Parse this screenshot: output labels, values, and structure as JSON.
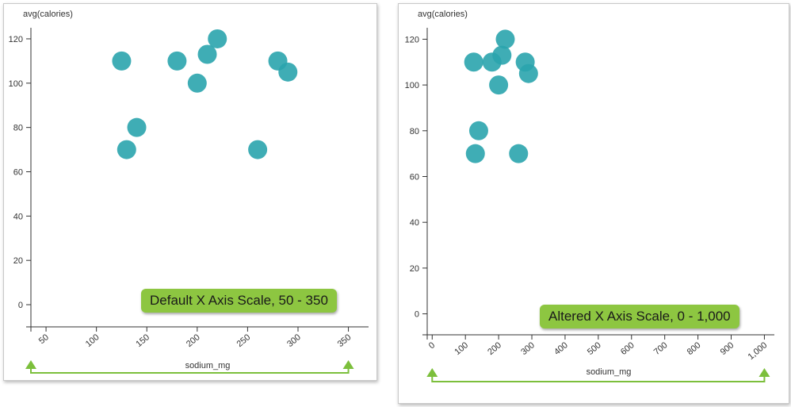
{
  "theme": {
    "dot_color": "#2aa4ad",
    "callout_color": "#8dc641",
    "range_color": "#7cbf3c",
    "axis_color": "#333333"
  },
  "chart_data": [
    {
      "type": "scatter",
      "title": "",
      "ylabel": "avg(calories)",
      "xlabel": "sodium_mg",
      "xlim": [
        35,
        370
      ],
      "ylim": [
        -5,
        125
      ],
      "x_ticks": [
        "50",
        "100",
        "150",
        "200",
        "250",
        "300",
        "350"
      ],
      "y_ticks": [
        "0",
        "20",
        "40",
        "60",
        "80",
        "100",
        "120"
      ],
      "x_tick_values": [
        50,
        100,
        150,
        200,
        250,
        300,
        350
      ],
      "y_tick_values": [
        0,
        20,
        40,
        60,
        80,
        100,
        120
      ],
      "points": [
        {
          "x": 125,
          "y": 110
        },
        {
          "x": 130,
          "y": 70
        },
        {
          "x": 140,
          "y": 80
        },
        {
          "x": 180,
          "y": 110
        },
        {
          "x": 200,
          "y": 100
        },
        {
          "x": 210,
          "y": 113
        },
        {
          "x": 220,
          "y": 120
        },
        {
          "x": 260,
          "y": 70
        },
        {
          "x": 280,
          "y": 110
        },
        {
          "x": 290,
          "y": 105
        }
      ],
      "grid": false,
      "callout": "Default X Axis Scale, 50 - 350",
      "range_marker": {
        "from": 35,
        "to": 350
      }
    },
    {
      "type": "scatter",
      "title": "",
      "ylabel": "avg(calories)",
      "xlabel": "sodium_mg",
      "xlim": [
        -15,
        1030
      ],
      "ylim": [
        -5,
        125
      ],
      "x_ticks": [
        "0",
        "100",
        "200",
        "300",
        "400",
        "500",
        "600",
        "700",
        "800",
        "900",
        "1,000"
      ],
      "y_ticks": [
        "0",
        "20",
        "40",
        "60",
        "80",
        "100",
        "120"
      ],
      "x_tick_values": [
        0,
        100,
        200,
        300,
        400,
        500,
        600,
        700,
        800,
        900,
        1000
      ],
      "y_tick_values": [
        0,
        20,
        40,
        60,
        80,
        100,
        120
      ],
      "points": [
        {
          "x": 125,
          "y": 110
        },
        {
          "x": 130,
          "y": 70
        },
        {
          "x": 140,
          "y": 80
        },
        {
          "x": 180,
          "y": 110
        },
        {
          "x": 200,
          "y": 100
        },
        {
          "x": 210,
          "y": 113
        },
        {
          "x": 220,
          "y": 120
        },
        {
          "x": 260,
          "y": 70
        },
        {
          "x": 280,
          "y": 110
        },
        {
          "x": 290,
          "y": 105
        }
      ],
      "grid": false,
      "callout": "Altered X Axis Scale, 0 - 1,000",
      "range_marker": {
        "from": 0,
        "to": 1000
      }
    }
  ]
}
